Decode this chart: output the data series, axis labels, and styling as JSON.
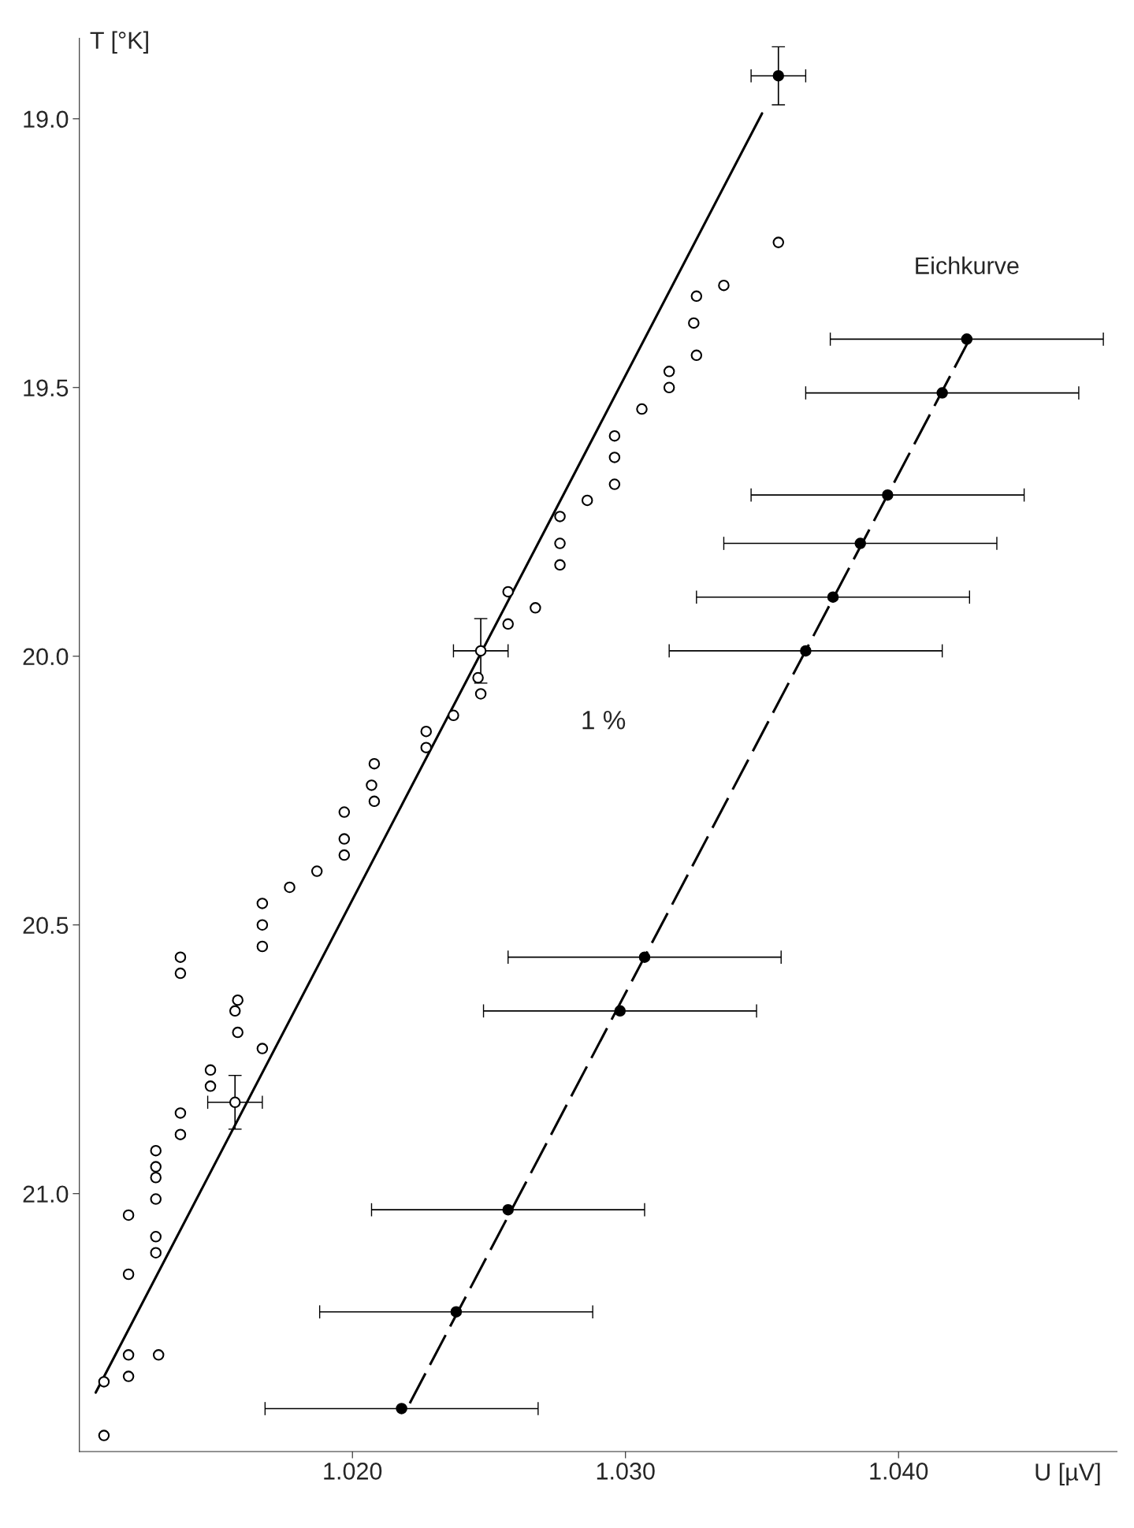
{
  "chart_data": {
    "type": "scatter",
    "xlabel": "U [µV]",
    "ylabel": "T [°K]",
    "xlim": [
      1.01,
      1.048
    ],
    "ylim": [
      21.48,
      18.85
    ],
    "xticks": [
      {
        "value": 1.02,
        "label": "1.020"
      },
      {
        "value": 1.03,
        "label": "1.030"
      },
      {
        "value": 1.04,
        "label": "1.040"
      }
    ],
    "yticks": [
      {
        "value": 19.0,
        "label": "19.0"
      },
      19.5,
      {
        "value": 20.0,
        "label": "20.0"
      },
      20.5,
      {
        "value": 21.0,
        "label": "21.0"
      }
    ],
    "grid": false,
    "legend": false,
    "annotations": [
      "1 %"
    ],
    "series": [
      {
        "type": "line",
        "color": "#000000",
        "line_style": "solid",
        "x": [
          1.0106,
          1.035
        ],
        "values": [
          21.37,
          18.99
        ]
      },
      {
        "type": "line",
        "color": "#000000",
        "line_style": "dashed",
        "x": [
          1.0221,
          1.0426
        ],
        "values": [
          21.39,
          19.41
        ]
      },
      {
        "marker": "circle",
        "color": "#ffffff",
        "x": [
          1.0356,
          1.0336,
          1.0326,
          1.0325,
          1.0326,
          1.0316,
          1.0316,
          1.0306,
          1.0296,
          1.0296,
          1.0296,
          1.0286,
          1.0276,
          1.0276,
          1.0276,
          1.0257,
          1.0267,
          1.0257,
          1.0247,
          1.0246,
          1.0247,
          1.0237,
          1.0227,
          1.0227,
          1.0208,
          1.0207,
          1.0208,
          1.0197,
          1.0197,
          1.0197,
          1.0187,
          1.0177,
          1.0167,
          1.0167,
          1.0167,
          1.0137,
          1.0137,
          1.0158,
          1.0157,
          1.0158,
          1.0167,
          1.0148,
          1.0148,
          1.0157,
          1.0137,
          1.0137,
          1.0128,
          1.0128,
          1.0128,
          1.0128,
          1.0118,
          1.0128,
          1.0128,
          1.0118,
          1.0118,
          1.0129,
          1.0118,
          1.0109,
          1.0109
        ],
        "values": [
          19.23,
          19.31,
          19.33,
          19.38,
          19.44,
          19.47,
          19.5,
          19.54,
          19.59,
          19.63,
          19.68,
          19.71,
          19.74,
          19.79,
          19.83,
          19.88,
          19.91,
          19.94,
          19.99,
          20.04,
          20.07,
          20.11,
          20.14,
          20.17,
          20.2,
          20.24,
          20.27,
          20.29,
          20.34,
          20.37,
          20.4,
          20.43,
          20.46,
          20.5,
          20.54,
          20.56,
          20.59,
          20.64,
          20.66,
          20.7,
          20.73,
          20.77,
          20.8,
          20.83,
          20.85,
          20.89,
          20.92,
          20.95,
          20.97,
          21.01,
          21.04,
          21.08,
          21.11,
          21.15,
          21.3,
          21.3,
          21.34,
          21.35,
          21.45
        ],
        "errors": [
          null,
          null,
          null,
          null,
          null,
          null,
          null,
          null,
          null,
          null,
          null,
          null,
          null,
          null,
          null,
          null,
          null,
          null,
          0.06,
          null,
          null,
          null,
          null,
          null,
          null,
          null,
          null,
          null,
          null,
          null,
          null,
          null,
          null,
          null,
          null,
          null,
          null,
          null,
          null,
          null,
          null,
          null,
          null,
          0.05,
          null,
          null,
          null,
          null,
          null,
          null,
          null,
          null,
          null,
          null,
          null,
          null,
          null,
          null,
          null
        ],
        "xerrors": [
          null,
          null,
          null,
          null,
          null,
          null,
          null,
          null,
          null,
          null,
          null,
          null,
          null,
          null,
          null,
          null,
          null,
          null,
          0.001,
          null,
          null,
          null,
          null,
          null,
          null,
          null,
          null,
          null,
          null,
          null,
          null,
          null,
          null,
          null,
          null,
          null,
          null,
          null,
          null,
          null,
          null,
          null,
          null,
          0.001,
          null,
          null,
          null,
          null,
          null,
          null,
          null,
          null,
          null,
          null,
          null,
          null,
          null,
          null,
          null
        ]
      },
      {
        "marker": "circle",
        "color": "#000000",
        "x": [
          1.0356
        ],
        "values": [
          18.92
        ],
        "errors": [
          0.054
        ],
        "xerrors": [
          0.001
        ]
      },
      {
        "marker": "circle",
        "color": "#000000",
        "name": "Eichkurve",
        "x": [
          1.0425,
          1.0416,
          1.0396,
          1.0386,
          1.0376,
          1.0366,
          1.0307,
          1.0298,
          1.0257,
          1.0238,
          1.0218
        ],
        "values": [
          19.41,
          19.51,
          19.7,
          19.79,
          19.89,
          19.99,
          20.56,
          20.66,
          21.03,
          21.22,
          21.4
        ],
        "xerrors": [
          0.005,
          0.005,
          0.005,
          0.005,
          0.005,
          0.005,
          0.005,
          0.005,
          0.005,
          0.005,
          0.005
        ]
      }
    ]
  }
}
